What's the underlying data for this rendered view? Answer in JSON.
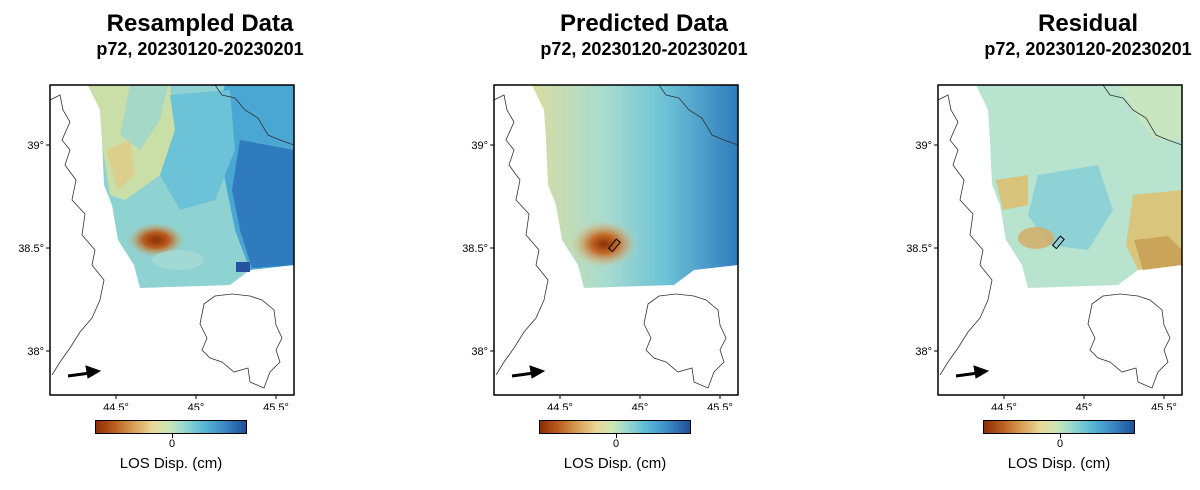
{
  "chart_data": [
    {
      "type": "heatmap",
      "title": "Resampled Data",
      "subtitle": "p72, 20230120-20230201",
      "x_ticks": [
        "44.5°",
        "45°",
        "45.5°"
      ],
      "y_ticks": [
        "39°",
        "38.5°",
        "38°"
      ],
      "xlim": [
        44.2,
        45.6
      ],
      "ylim": [
        37.8,
        39.3
      ],
      "colorbar": {
        "label": "LOS Disp. (cm)",
        "tick": "0",
        "colors": [
          "#8c2d04",
          "#d9a45a",
          "#e8d898",
          "#9bd8cf",
          "#3e8fc8",
          "#1f4f9a"
        ]
      },
      "show_fault": false
    },
    {
      "type": "heatmap",
      "title": "Predicted Data",
      "subtitle": "p72, 20230120-20230201",
      "x_ticks": [
        "44.5°",
        "45°",
        "45.5°"
      ],
      "y_ticks": [
        "39°",
        "38.5°",
        "38°"
      ],
      "xlim": [
        44.2,
        45.6
      ],
      "ylim": [
        37.8,
        39.3
      ],
      "colorbar": {
        "label": "LOS Disp. (cm)",
        "tick": "0",
        "colors": [
          "#8c2d04",
          "#d9a45a",
          "#e8d898",
          "#9bd8cf",
          "#3e8fc8",
          "#1f4f9a"
        ]
      },
      "show_fault": true
    },
    {
      "type": "heatmap",
      "title": "Residual",
      "subtitle": "p72, 20230120-20230201",
      "x_ticks": [
        "44.5°",
        "45°",
        "45.5°"
      ],
      "y_ticks": [
        "39°",
        "38.5°",
        "38°"
      ],
      "xlim": [
        44.2,
        45.6
      ],
      "ylim": [
        37.8,
        39.3
      ],
      "colorbar": {
        "label": "LOS Disp. (cm)",
        "tick": "0",
        "colors": [
          "#8c2d04",
          "#d9a45a",
          "#e8d898",
          "#9bd8cf",
          "#3e8fc8",
          "#1f4f9a"
        ]
      },
      "show_fault": true
    }
  ]
}
